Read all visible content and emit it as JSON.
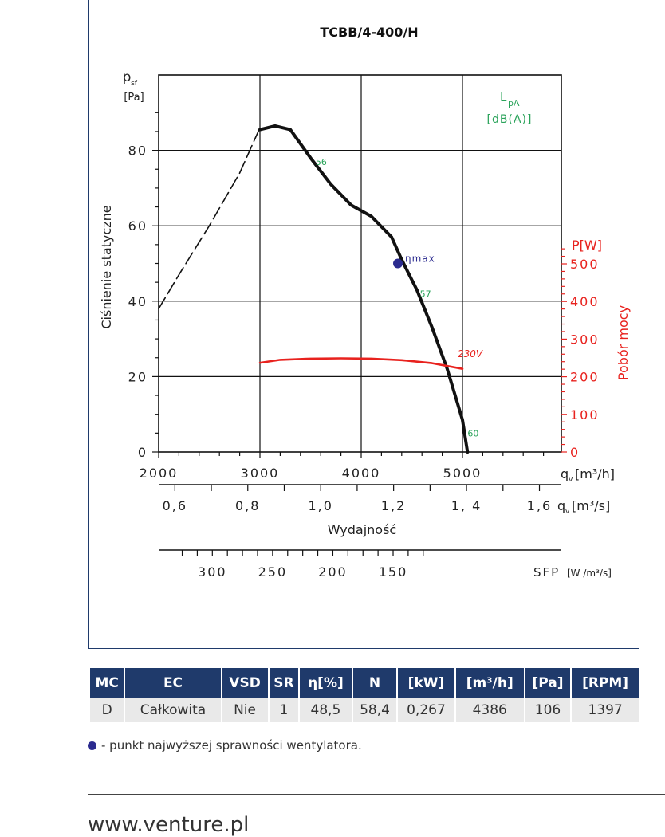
{
  "chart_data": {
    "type": "line",
    "title": "TCBB/4-400/H",
    "xlabel": "Wydajność",
    "ylabel": "Ciśnienie statyczne",
    "y_unit_label": "p",
    "y_unit_sub": "sf",
    "y_unit": "[Pa]",
    "ylim": [
      0,
      100
    ],
    "y_ticks": [
      "0",
      "20",
      "40",
      "60",
      "80"
    ],
    "xlim": [
      2000,
      6000
    ],
    "x_ticks_m3h": [
      "2000",
      "3000",
      "4000",
      "5000"
    ],
    "x_unit_m3h": "q",
    "x_unit_m3h_sub": "v",
    "x_unit_m3h_rest": "[m³/h]",
    "x_ticks_m3s": [
      {
        "value": 0.6,
        "label": "0,6"
      },
      {
        "value": 0.8,
        "label": "0,8"
      },
      {
        "value": 1.0,
        "label": "1,0"
      },
      {
        "value": 1.2,
        "label": "1,2"
      },
      {
        "value": 1.4,
        "label": "1, 4"
      },
      {
        "value": 1.6,
        "label": "1,6"
      }
    ],
    "x_unit_m3s": "q",
    "x_unit_m3s_sub": "v",
    "x_unit_m3s_rest": "[m³/s]",
    "sfp_ticks": [
      {
        "value": 300,
        "label": "300"
      },
      {
        "value": 250,
        "label": "250"
      },
      {
        "value": 200,
        "label": "200"
      },
      {
        "value": 150,
        "label": "150"
      }
    ],
    "sfp_label": "SFP",
    "sfp_unit": "[W /m³/s]",
    "right_axis_label": "Pobór mocy",
    "right_axis_unit": "P[W]",
    "right_ylim": [
      0,
      900
    ],
    "right_ticks": [
      "0",
      "100",
      "200",
      "300",
      "400",
      "500"
    ],
    "lpa_label": "L",
    "lpa_sub": "pA",
    "lpa_unit": "[dB(A)]",
    "series": [
      {
        "name": "",
        "style": "dashed",
        "color": "#111111",
        "points": [
          [
            2000,
            38
          ],
          [
            2200,
            47
          ],
          [
            2500,
            60
          ],
          [
            2800,
            74
          ],
          [
            3000,
            86
          ]
        ]
      },
      {
        "name": "",
        "style": "solid",
        "color": "#111111",
        "points": [
          [
            3000,
            85.5
          ],
          [
            3150,
            86.5
          ],
          [
            3300,
            85.5
          ],
          [
            3500,
            78
          ],
          [
            3700,
            71
          ],
          [
            3900,
            65.5
          ],
          [
            4100,
            62.5
          ],
          [
            4300,
            57
          ],
          [
            4400,
            51
          ],
          [
            4550,
            43
          ],
          [
            4700,
            33
          ],
          [
            4850,
            22
          ],
          [
            5000,
            8.5
          ],
          [
            5050,
            0
          ]
        ]
      },
      {
        "name": "230V",
        "style": "solid",
        "color": "#e8221e",
        "axis": "right",
        "points": [
          [
            3000,
            237
          ],
          [
            3200,
            245
          ],
          [
            3500,
            248
          ],
          [
            3800,
            249
          ],
          [
            4100,
            248
          ],
          [
            4400,
            244
          ],
          [
            4700,
            236
          ],
          [
            5000,
            221
          ]
        ]
      }
    ],
    "annotations": [
      {
        "text": "56",
        "x": 3550,
        "y": 77,
        "color": "#2aa35a"
      },
      {
        "text": "57",
        "x": 4580,
        "y": 42,
        "color": "#2aa35a"
      },
      {
        "text": "60",
        "x": 5050,
        "y": 5,
        "color": "#2aa35a"
      },
      {
        "text": "230V",
        "x": 5000,
        "y": 26,
        "color": "#e8221e"
      }
    ],
    "eta_max_label": "ηmax",
    "eta_max_point": {
      "x": 4386,
      "y": 50
    }
  },
  "table": {
    "headers": [
      "MC",
      "EC",
      "VSD",
      "SR",
      "η[%]",
      "N",
      "[kW]",
      "[m³/h]",
      "[Pa]",
      "[RPM]"
    ],
    "rows": [
      [
        "D",
        "Całkowita",
        "Nie",
        "1",
        "48,5",
        "58,4",
        "0,267",
        "4386",
        "106",
        "1397"
      ]
    ]
  },
  "note": "- punkt najwyższej sprawności wentylatora.",
  "footer_url": "www.venture.pl",
  "colors": {
    "navy": "#1f3a6b",
    "power": "#e8221e",
    "noise": "#2aa35a",
    "eta": "#2b2b8f"
  }
}
